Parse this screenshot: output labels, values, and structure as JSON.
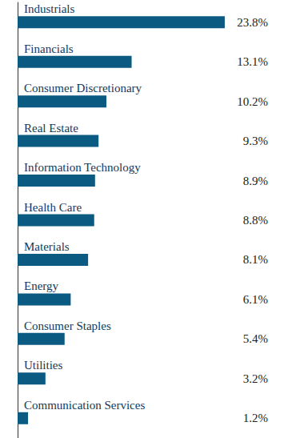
{
  "chart_data": {
    "type": "bar",
    "orientation": "horizontal",
    "categories": [
      "Industrials",
      "Financials",
      "Consumer Discretionary",
      "Real Estate",
      "Information Technology",
      "Health Care",
      "Materials",
      "Energy",
      "Consumer Staples",
      "Utilities",
      "Communication Services"
    ],
    "values": [
      23.8,
      13.1,
      10.2,
      9.3,
      8.9,
      8.8,
      8.1,
      6.1,
      5.4,
      3.2,
      1.2
    ],
    "value_labels": [
      "23.8%",
      "13.1%",
      "10.2%",
      "9.3%",
      "8.9%",
      "8.8%",
      "8.1%",
      "6.1%",
      "5.4%",
      "3.2%",
      "1.2%"
    ],
    "color": "#0b5a82",
    "xlim": [
      0,
      25
    ],
    "data_labels": true,
    "tick_labels": "y",
    "grid": false
  }
}
